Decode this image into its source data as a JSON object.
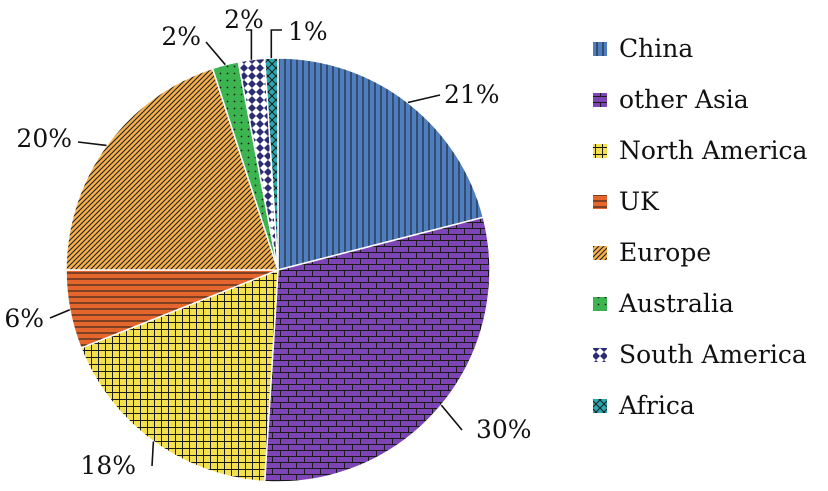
{
  "chart_data": {
    "type": "pie",
    "title": "",
    "labels": [
      "China",
      "other Asia",
      "North America",
      "UK",
      "Europe",
      "Australia",
      "South America",
      "Africa"
    ],
    "values": [
      21,
      30,
      18,
      6,
      20,
      2,
      2,
      1
    ],
    "value_labels": [
      "21%",
      "30%",
      "18%",
      "6%",
      "20%",
      "2%",
      "2%",
      "1%"
    ],
    "start": "12 o'clock",
    "direction": "clockwise",
    "colors": [
      "#4f7ec0",
      "#7c44b4",
      "#f2e04e",
      "#e5662c",
      "#f5b04c",
      "#3cb450",
      "#2c2c70",
      "#2aa7b0"
    ],
    "patterns": [
      "vertical-lines",
      "brick",
      "grid",
      "horizontal-lines",
      "diagonal-hatch",
      "dots",
      "checker",
      "crosshatch"
    ],
    "legend": {
      "placement": "right"
    }
  }
}
